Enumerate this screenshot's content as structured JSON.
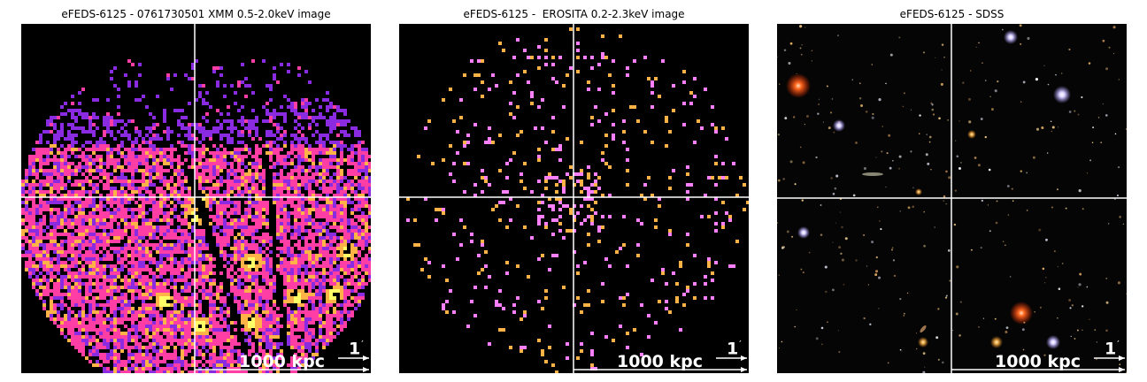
{
  "panels": [
    {
      "title": "eFEDS-6125 - 0761730501 XMM 0.5-2.0keV image",
      "scale_bar_kpc": "1000 kpc",
      "scale_bar_arcmin": "1",
      "arcmin_symbol": "′",
      "colormap": [
        "#000000",
        "#8a2be2",
        "#ff3ea5",
        "#ffb347",
        "#ffff66"
      ]
    },
    {
      "title": "eFEDS-6125 -  EROSITA 0.2-2.3keV image",
      "scale_bar_kpc": "1000 kpc",
      "scale_bar_arcmin": "1",
      "arcmin_symbol": "′",
      "colormap": [
        "#000000",
        "#ff80ff",
        "#ffb347"
      ]
    },
    {
      "title": "eFEDS-6125 - SDSS",
      "scale_bar_kpc": "1000 kpc",
      "scale_bar_arcmin": "1",
      "arcmin_symbol": "′",
      "colormap": [
        "#050505",
        "#e0b070",
        "#ffffff"
      ]
    }
  ]
}
